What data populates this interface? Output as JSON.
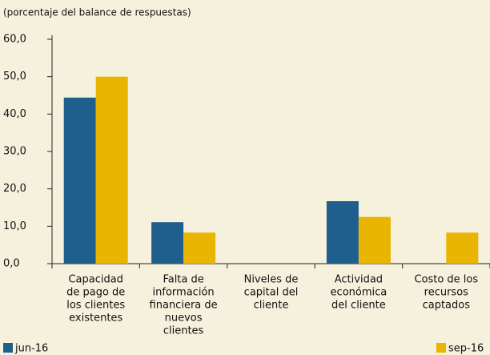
{
  "chart_data": {
    "type": "bar",
    "subtitle": "(porcentaje del balance de respuestas)",
    "categories": [
      [
        "Capacidad",
        "de pago de",
        "los clientes",
        "existentes"
      ],
      [
        "Falta de",
        "información",
        "financiera de",
        "nuevos",
        "clientes"
      ],
      [
        "Niveles de",
        "capital del",
        "cliente"
      ],
      [
        "Actividad",
        "económica",
        "del cliente"
      ],
      [
        "Costo de los",
        "recursos",
        "captados"
      ]
    ],
    "series": [
      {
        "name": "jun-16",
        "color": "#1f5f8e",
        "values": [
          44.4,
          11.1,
          0,
          16.7,
          0
        ]
      },
      {
        "name": "sep-16",
        "color": "#eab500",
        "values": [
          50.0,
          8.3,
          0,
          12.5,
          8.3
        ]
      }
    ],
    "ylim": [
      0,
      60
    ],
    "yticks": [
      {
        "value": 0,
        "label": "0,0"
      },
      {
        "value": 10,
        "label": "10,0"
      },
      {
        "value": 20,
        "label": "20,0"
      },
      {
        "value": 30,
        "label": "30,0"
      },
      {
        "value": 40,
        "label": "40,0"
      },
      {
        "value": 50,
        "label": "50,0"
      },
      {
        "value": 60,
        "label": "60,0"
      }
    ],
    "legend": "bottom"
  }
}
